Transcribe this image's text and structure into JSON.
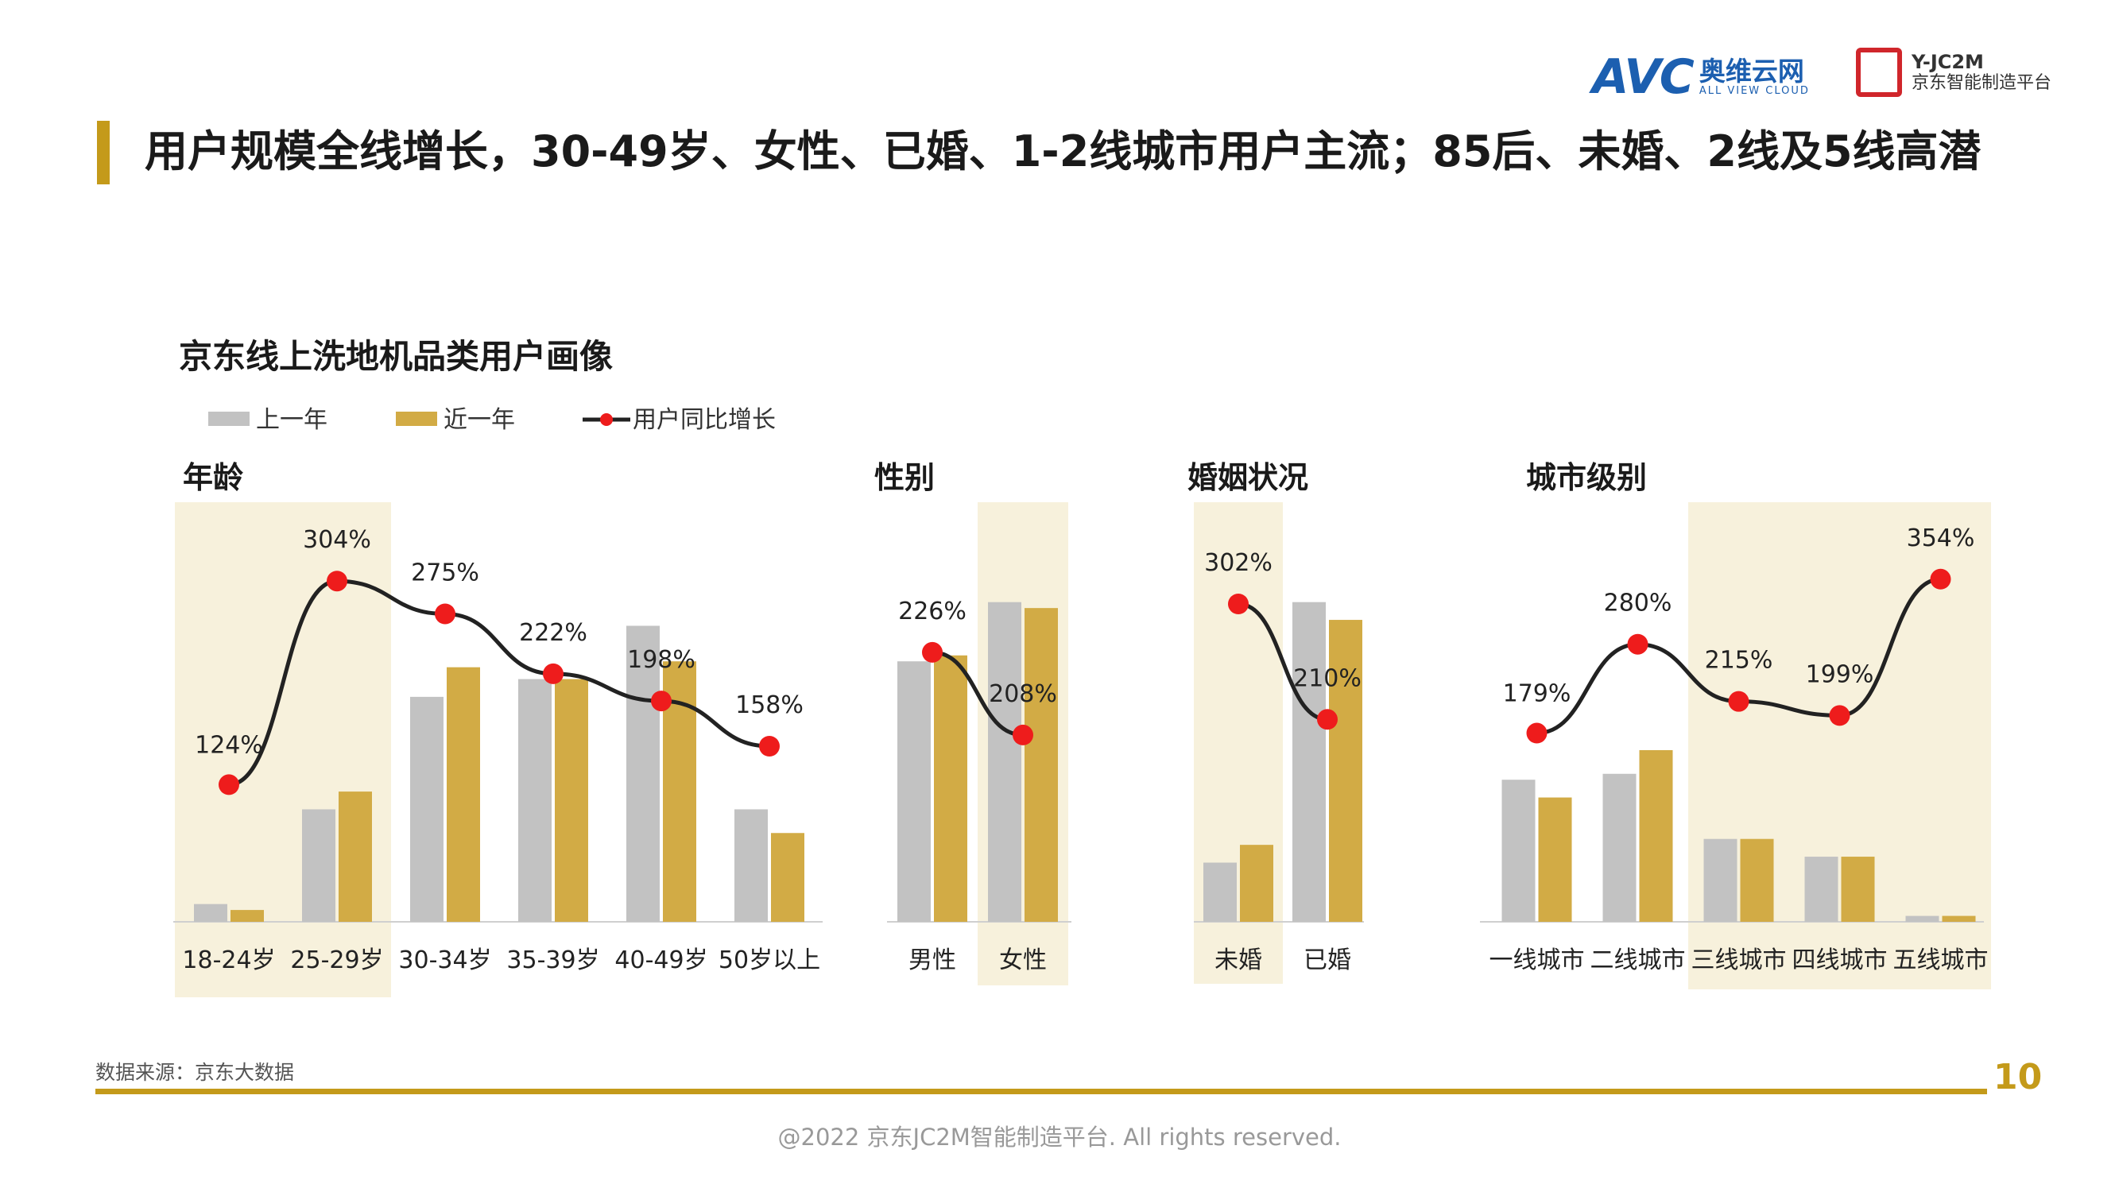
{
  "header": {
    "title": "用户规模全线增长，30-49岁、女性、已婚、1-2线城市用户主流；85后、未婚、2线及5线高潜",
    "logo_avc": {
      "mark": "AVC",
      "cn": "奥维云网",
      "en": "ALL VIEW CLOUD"
    },
    "logo_jd": {
      "line1": "Y-JC2M",
      "line2": "京东智能制造平台"
    }
  },
  "colors": {
    "accent": "#c49a1a",
    "prev_year": "#c2c2c2",
    "recent_year": "#d2ab45",
    "highlight": "#f7f1dc",
    "line": "#222222",
    "marker": "#ee1c1c"
  },
  "chart_data": {
    "type": "bar",
    "title": "京东线上洗地机品类用户画像",
    "legend": {
      "placement": "top-left",
      "entries": [
        "上一年",
        "近一年",
        "用户同比增长"
      ]
    },
    "panels": [
      {
        "name": "年龄",
        "categories": [
          "18-24岁",
          "25-29岁",
          "30-34岁",
          "35-39岁",
          "40-49岁",
          "50岁以上"
        ],
        "series": [
          {
            "name": "上一年",
            "values": [
              3,
              19,
              38,
              41,
              50,
              19
            ]
          },
          {
            "name": "近一年",
            "values": [
              2,
              22,
              43,
              41,
              44,
              15
            ]
          }
        ],
        "growth": {
          "name": "用户同比增长",
          "values": [
            124,
            304,
            275,
            222,
            198,
            158
          ],
          "labels": [
            "124%",
            "304%",
            "275%",
            "222%",
            "198%",
            "158%"
          ],
          "range": [
            80,
            340
          ]
        },
        "highlight": [
          "18-24岁",
          "25-29岁"
        ]
      },
      {
        "name": "性别",
        "categories": [
          "男性",
          "女性"
        ],
        "series": [
          {
            "name": "上一年",
            "values": [
              44,
              54
            ]
          },
          {
            "name": "近一年",
            "values": [
              45,
              53
            ]
          }
        ],
        "growth": {
          "name": "用户同比增长",
          "values": [
            226,
            208
          ],
          "labels": [
            "226%",
            "208%"
          ],
          "range": [
            195,
            240
          ]
        },
        "highlight": [
          "女性"
        ]
      },
      {
        "name": "婚姻状况",
        "categories": [
          "未婚",
          "已婚"
        ],
        "series": [
          {
            "name": "上一年",
            "values": [
              10,
              54
            ]
          },
          {
            "name": "近一年",
            "values": [
              13,
              51
            ]
          }
        ],
        "growth": {
          "name": "用户同比增长",
          "values": [
            302,
            210
          ],
          "labels": [
            "302%",
            "210%"
          ],
          "range": [
            150,
            340
          ]
        },
        "highlight": [
          "未婚"
        ]
      },
      {
        "name": "城市级别",
        "categories": [
          "一线城市",
          "二线城市",
          "三线城市",
          "四线城市",
          "五线城市"
        ],
        "series": [
          {
            "name": "上一年",
            "values": [
              24,
              25,
              14,
              11,
              1
            ]
          },
          {
            "name": "近一年",
            "values": [
              21,
              29,
              14,
              11,
              1
            ]
          }
        ],
        "growth": {
          "name": "用户同比增长",
          "values": [
            179,
            280,
            215,
            199,
            354
          ],
          "labels": [
            "179%",
            "280%",
            "215%",
            "199%",
            "354%"
          ],
          "range": [
            100,
            380
          ]
        },
        "highlight": [
          "三线城市",
          "四线城市",
          "五线城市"
        ]
      }
    ]
  },
  "footer": {
    "source": "数据来源：京东大数据",
    "page_number": "10",
    "copyright": "@2022 京东JC2M智能制造平台. All rights reserved."
  }
}
